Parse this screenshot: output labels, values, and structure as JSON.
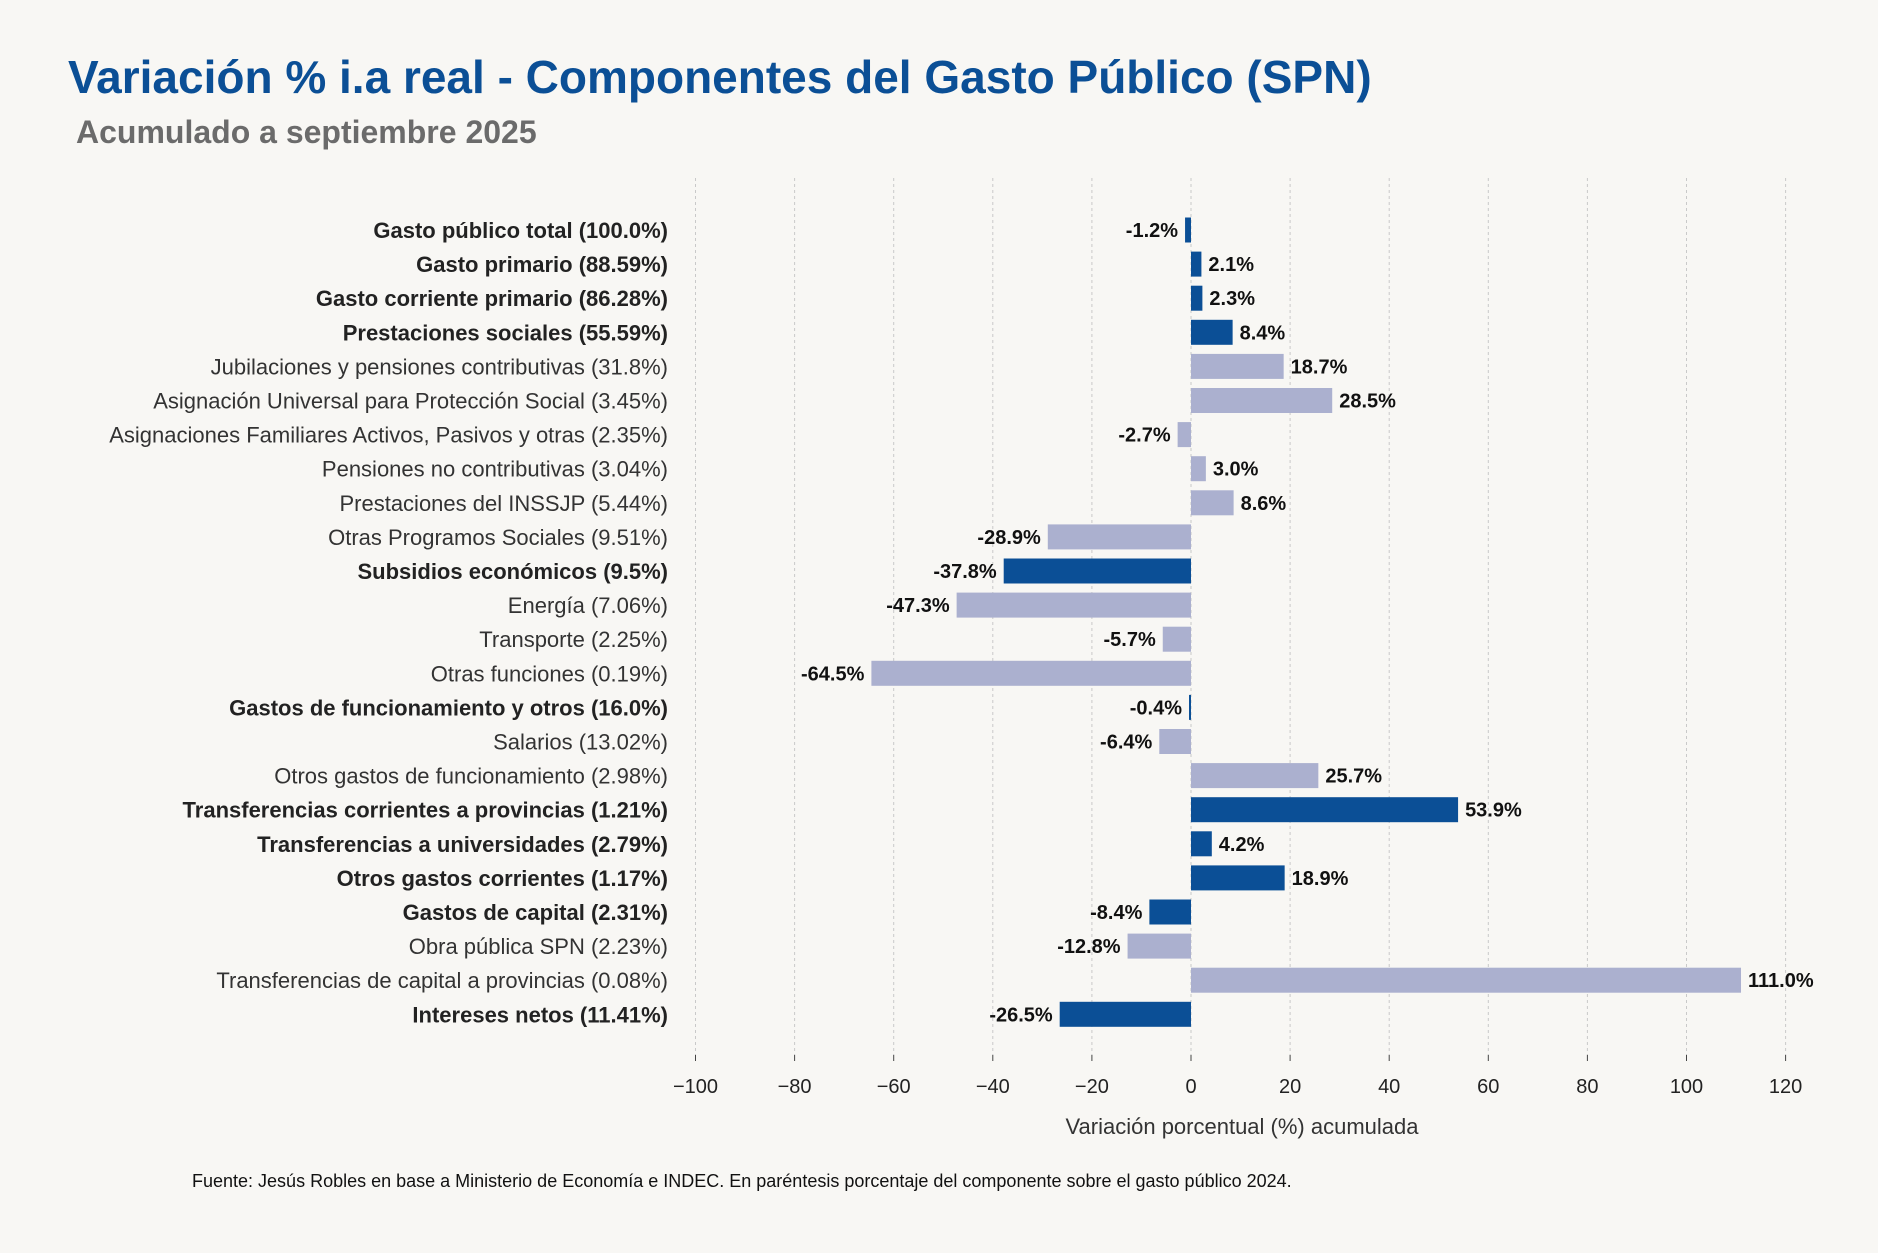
{
  "chart_data": {
    "type": "bar",
    "orientation": "horizontal",
    "title": "Variación % i.a real - Componentes del Gasto Público (SPN)",
    "subtitle": "Acumulado a septiembre 2025",
    "xlabel": "Variación porcentual (%) acumulada",
    "xlim": [
      -100,
      125
    ],
    "xticks": [
      -100,
      -80,
      -60,
      -40,
      -20,
      0,
      20,
      40,
      60,
      80,
      100,
      120
    ],
    "xtick_labels": [
      "−100",
      "−80",
      "−60",
      "−40",
      "−20",
      "0",
      "20",
      "40",
      "60",
      "80",
      "100",
      "120"
    ],
    "grid": true,
    "colors": {
      "main": "#0b4f96",
      "sub": "#abb0cf"
    },
    "categories": [
      "Gasto público total (100.0%)",
      "Gasto primario (88.59%)",
      "Gasto corriente primario (86.28%)",
      "Prestaciones sociales (55.59%)",
      "Jubilaciones y pensiones contributivas (31.8%)",
      "Asignación Universal para Protección Social (3.45%)",
      "Asignaciones Familiares Activos, Pasivos y otras (2.35%)",
      "Pensiones no contributivas (3.04%)",
      "Prestaciones del INSSJP (5.44%)",
      "Otras Programos Sociales (9.51%)",
      "Subsidios económicos (9.5%)",
      "Energía (7.06%)",
      "Transporte (2.25%)",
      "Otras funciones (0.19%)",
      "Gastos de funcionamiento y otros (16.0%)",
      "Salarios (13.02%)",
      "Otros gastos de funcionamiento (2.98%)",
      "Transferencias corrientes a provincias (1.21%)",
      "Transferencias a universidades (2.79%)",
      "Otros gastos corrientes (1.17%)",
      "Gastos de capital (2.31%)",
      "Obra pública SPN (2.23%)",
      "Transferencias de capital a provincias (0.08%)",
      "Intereses netos (11.41%)"
    ],
    "values": [
      -1.2,
      2.1,
      2.3,
      8.4,
      18.7,
      28.5,
      -2.7,
      3.0,
      8.6,
      -28.9,
      -37.8,
      -47.3,
      -5.7,
      -64.5,
      -0.4,
      -6.4,
      25.7,
      53.9,
      4.2,
      18.9,
      -8.4,
      -12.8,
      111.0,
      -26.5
    ],
    "value_labels": [
      "-1.2%",
      "2.1%",
      "2.3%",
      "8.4%",
      "18.7%",
      "28.5%",
      "-2.7%",
      "3.0%",
      "8.6%",
      "-28.9%",
      "-37.8%",
      "-47.3%",
      "-5.7%",
      "-64.5%",
      "-0.4%",
      "-6.4%",
      "25.7%",
      "53.9%",
      "4.2%",
      "18.9%",
      "-8.4%",
      "-12.8%",
      "111.0%",
      "-26.5%"
    ],
    "is_main": [
      true,
      true,
      true,
      true,
      false,
      false,
      false,
      false,
      false,
      false,
      true,
      false,
      false,
      false,
      true,
      false,
      false,
      true,
      true,
      true,
      true,
      false,
      false,
      true
    ]
  },
  "footer": {
    "source": "Fuente: Jesús Robles en base a Ministerio de Economía e INDEC. En paréntesis porcentaje del componente sobre el gasto público 2024."
  }
}
